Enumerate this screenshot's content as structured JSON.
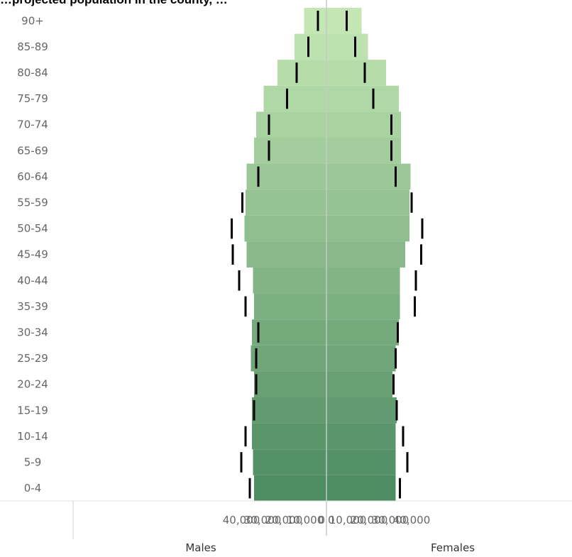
{
  "title": "…projected population in the county, …",
  "chart_data": {
    "type": "bar",
    "orientation": "horizontal-diverging",
    "categories": [
      "90+",
      "85-89",
      "80-84",
      "75-79",
      "70-74",
      "65-69",
      "60-64",
      "55-59",
      "50-54",
      "45-49",
      "40-44",
      "35-39",
      "30-34",
      "25-29",
      "20-24",
      "15-19",
      "10-14",
      "5-9",
      "0-4"
    ],
    "series": [
      {
        "name": "Males",
        "values": [
          10500,
          15000,
          23000,
          29500,
          33000,
          34000,
          37500,
          38000,
          38500,
          37500,
          34500,
          34000,
          35000,
          35500,
          34000,
          35000,
          35000,
          34500,
          34000
        ],
        "reference": [
          4000,
          8500,
          14000,
          18500,
          27000,
          27000,
          32000,
          39500,
          44500,
          44000,
          41000,
          38000,
          32000,
          33000,
          33000,
          34000,
          38000,
          40000,
          36000
        ]
      },
      {
        "name": "Females",
        "values": [
          16500,
          19500,
          28000,
          34000,
          35000,
          35000,
          39500,
          39000,
          39000,
          37000,
          34500,
          34500,
          34000,
          32500,
          31000,
          33000,
          32500,
          32500,
          32500
        ],
        "reference": [
          9500,
          13500,
          18000,
          22000,
          30500,
          30500,
          32500,
          40000,
          45000,
          44500,
          42000,
          41500,
          33500,
          32500,
          31500,
          33000,
          36000,
          38000,
          34500
        ]
      }
    ],
    "xlim": [
      -45000,
      45000
    ],
    "x_ticks": [
      "40,000",
      "30,000",
      "20,000",
      "10,000",
      "0",
      "0",
      "10,000",
      "20,000",
      "30,000",
      "40,000"
    ],
    "xlabel_left": "Males",
    "xlabel_right": "Females",
    "colors": {
      "top": "#c3e6b3",
      "bottom": "#4e8c62",
      "reference_mark": "#000000",
      "divider": "#c8c8c8"
    }
  }
}
